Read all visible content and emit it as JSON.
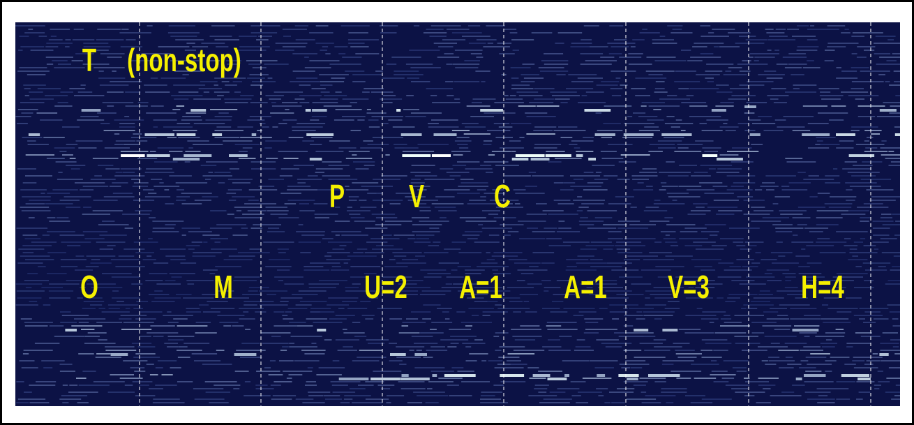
{
  "annotations": {
    "top": [
      "T",
      "(non-stop)"
    ],
    "middle": [
      "P",
      "V",
      "C"
    ],
    "bottom": [
      "O",
      "M",
      "U=2",
      "A=1",
      "A=1",
      "V=3",
      "H=4"
    ]
  }
}
